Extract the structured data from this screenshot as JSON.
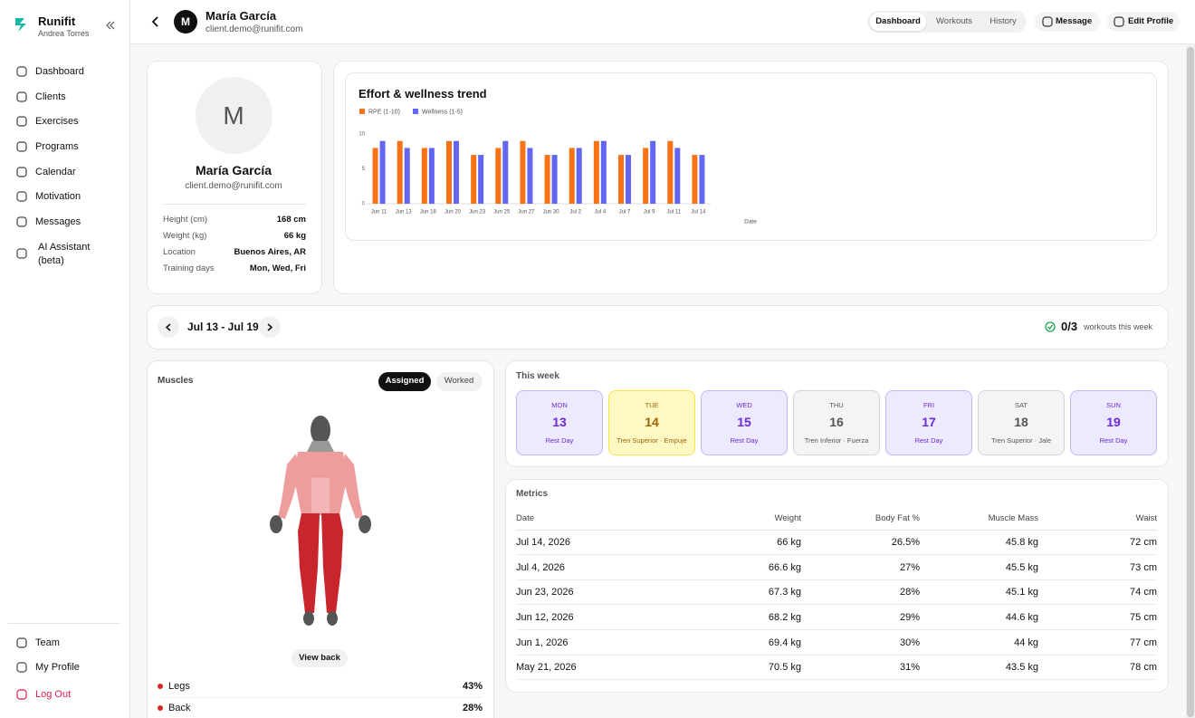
{
  "sidebar": {
    "brand": "Runifit",
    "user": "Andrea Torres",
    "nav": [
      "Dashboard",
      "Clients",
      "Exercises",
      "Programs",
      "Calendar",
      "Motivation",
      "Messages",
      "AI Assistant (beta)"
    ],
    "bottom": [
      "Team",
      "My Profile",
      "Log Out"
    ]
  },
  "header": {
    "avatar": "M",
    "name": "María García",
    "email": "client.demo@runifit.com",
    "tabs": [
      "Dashboard",
      "Workouts",
      "History"
    ],
    "actions": [
      "Message",
      "Edit Profile"
    ]
  },
  "profile": {
    "avatar": "M",
    "name": "María García",
    "email": "client.demo@runifit.com",
    "fields": [
      [
        "Height (cm)",
        "168 cm"
      ],
      [
        "Weight (kg)",
        "66 kg"
      ],
      [
        "Location",
        "Buenos Aires, AR"
      ],
      [
        "Training days",
        "Mon, Wed, Fri"
      ]
    ]
  },
  "chart_data": {
    "type": "bar",
    "title": "Effort & wellness trend",
    "x_label": "Date",
    "categories": [
      "Jun 11",
      "Jun 13",
      "Jun 18",
      "Jun 20",
      "Jun 23",
      "Jun 25",
      "Jun 27",
      "Jun 30",
      "Jul 2",
      "Jul 4",
      "Jul 7",
      "Jul 9",
      "Jul 11",
      "Jul 14"
    ],
    "series": [
      {
        "name": "RPE (1-10)",
        "color": "#f97316",
        "values": [
          8,
          9,
          8,
          9,
          7,
          8,
          9,
          7,
          8,
          9,
          7,
          8,
          9,
          7
        ]
      },
      {
        "name": "Wellness (1-5)",
        "color": "#6366f1",
        "values": [
          9,
          8,
          8,
          9,
          7,
          9,
          8,
          7,
          8,
          9,
          7,
          9,
          8,
          7
        ]
      }
    ],
    "ylim": [
      0,
      10
    ],
    "yticks": [
      0,
      5,
      10
    ],
    "legend": "top-left"
  },
  "week": {
    "range": "Jul 13 - Jul 19",
    "count": "0/3",
    "count_label": "workouts this week"
  },
  "muscles": {
    "title": "Muscles",
    "toggle": [
      "Assigned",
      "Worked"
    ],
    "view_back": "View back",
    "items": [
      [
        "Legs",
        "43%"
      ],
      [
        "Back",
        "28%"
      ]
    ]
  },
  "this_week": {
    "title": "This week",
    "days": [
      {
        "day": "MON",
        "date": "13",
        "label": "Rest Day"
      },
      {
        "day": "TUE",
        "date": "14",
        "label": "Tren Superior · Empuje"
      },
      {
        "day": "WED",
        "date": "15",
        "label": "Rest Day"
      },
      {
        "day": "THU",
        "date": "16",
        "label": "Tren Inferior · Fuerza"
      },
      {
        "day": "FRI",
        "date": "17",
        "label": "Rest Day"
      },
      {
        "day": "SAT",
        "date": "18",
        "label": "Tren Superior · Jale"
      },
      {
        "day": "SUN",
        "date": "19",
        "label": "Rest Day"
      }
    ]
  },
  "metrics": {
    "title": "Metrics",
    "columns": [
      "Date",
      "Weight",
      "Body Fat %",
      "Muscle Mass",
      "Waist"
    ],
    "rows": [
      [
        "Jul 14, 2026",
        "66 kg",
        "26.5%",
        "45.8 kg",
        "72 cm"
      ],
      [
        "Jul 4, 2026",
        "66.6 kg",
        "27%",
        "45.5 kg",
        "73 cm"
      ],
      [
        "Jun 23, 2026",
        "67.3 kg",
        "28%",
        "45.1 kg",
        "74 cm"
      ],
      [
        "Jun 12, 2026",
        "68.2 kg",
        "29%",
        "44.6 kg",
        "75 cm"
      ],
      [
        "Jun 1, 2026",
        "69.4 kg",
        "30%",
        "44 kg",
        "77 cm"
      ],
      [
        "May 21, 2026",
        "70.5 kg",
        "31%",
        "43.5 kg",
        "78 cm"
      ]
    ]
  }
}
